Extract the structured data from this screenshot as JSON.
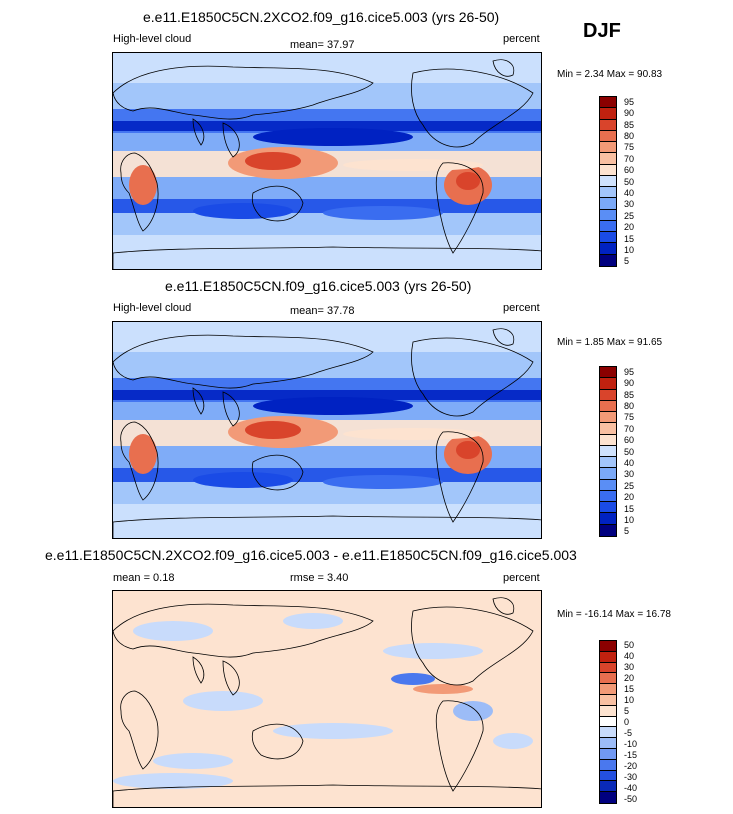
{
  "season": "DJF",
  "variable": "High-level cloud",
  "units": "percent",
  "panels": [
    {
      "title": "e.e11.E1850C5CN.2XCO2.f09_g16.cice5.003 (yrs 26-50)",
      "left_label": "High-level cloud",
      "center_label": "mean=  37.97",
      "right_label": "percent",
      "minmax": "Min =   2.34 Max =  90.83",
      "palette": "abs"
    },
    {
      "title": "e.e11.E1850C5CN.f09_g16.cice5.003 (yrs 26-50)",
      "left_label": "High-level cloud",
      "center_label": "mean=  37.78",
      "right_label": "percent",
      "minmax": "Min =   1.85 Max =  91.65",
      "palette": "abs"
    },
    {
      "title": "e.e11.E1850C5CN.2XCO2.f09_g16.cice5.003 - e.e11.E1850C5CN.f09_g16.cice5.003",
      "left_label": "mean =   0.18",
      "center_label": "rmse =   3.40",
      "right_label": "percent",
      "minmax": "Min = -16.14 Max =  16.78",
      "palette": "diff"
    }
  ],
  "chart_data": [
    {
      "type": "heatmap",
      "title": "e.e11.E1850C5CN.2XCO2.f09_g16.cice5.003 (yrs 26-50)",
      "field": "High-level cloud",
      "units": "percent",
      "mean": 37.97,
      "min": 2.34,
      "max": 90.83,
      "colorbar_levels": [
        5,
        10,
        15,
        20,
        25,
        30,
        40,
        50,
        60,
        70,
        75,
        80,
        85,
        90,
        95
      ]
    },
    {
      "type": "heatmap",
      "title": "e.e11.E1850C5CN.f09_g16.cice5.003 (yrs 26-50)",
      "field": "High-level cloud",
      "units": "percent",
      "mean": 37.78,
      "min": 1.85,
      "max": 91.65,
      "colorbar_levels": [
        5,
        10,
        15,
        20,
        25,
        30,
        40,
        50,
        60,
        70,
        75,
        80,
        85,
        90,
        95
      ]
    },
    {
      "type": "heatmap",
      "title": "e.e11.E1850C5CN.2XCO2.f09_g16.cice5.003 - e.e11.E1850C5CN.f09_g16.cice5.003",
      "units": "percent",
      "mean": 0.18,
      "rmse": 3.4,
      "min": -16.14,
      "max": 16.78,
      "colorbar_levels": [
        -50,
        -40,
        -30,
        -20,
        -15,
        -10,
        -5,
        0,
        5,
        10,
        15,
        20,
        30,
        40,
        50
      ]
    }
  ],
  "palettes": {
    "abs": [
      "#00007f",
      "#0022c2",
      "#1a4be6",
      "#3a6df0",
      "#5a8ef5",
      "#7ba9f7",
      "#a2c5fa",
      "#cfe2fd",
      "#fde3d0",
      "#f9c0a2",
      "#f29a77",
      "#e86f4f",
      "#d9442b",
      "#c0210f",
      "#8b0000"
    ],
    "diff": [
      "#00007f",
      "#0a2ab8",
      "#2450e0",
      "#4a78ee",
      "#7199f3",
      "#9cbcf7",
      "#c8dbfb",
      "#ffffff",
      "#fde3d0",
      "#f9c0a2",
      "#f29a77",
      "#e86f4f",
      "#d9442b",
      "#c0210f",
      "#8b0000"
    ]
  }
}
